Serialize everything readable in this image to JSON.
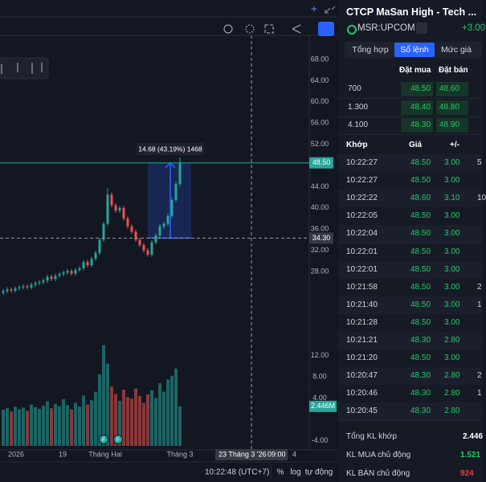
{
  "chart": {
    "price_axis": [
      {
        "value": 68,
        "label": "68.00"
      },
      {
        "value": 64,
        "label": "64.00"
      },
      {
        "value": 60,
        "label": "60.00"
      },
      {
        "value": 56,
        "label": "56.00"
      },
      {
        "value": 52,
        "label": "52.00"
      },
      {
        "value": 44,
        "label": "44.00"
      },
      {
        "value": 40,
        "label": "40.00"
      },
      {
        "value": 36,
        "label": "36.00"
      },
      {
        "value": 32,
        "label": "32.00"
      },
      {
        "value": 28,
        "label": "28.00"
      }
    ],
    "volume_axis": [
      {
        "value": 12,
        "label": "12.00"
      },
      {
        "value": 8,
        "label": "8.00"
      },
      {
        "value": 4,
        "label": "4.00"
      },
      {
        "value": -4,
        "label": "-4.00"
      }
    ],
    "candles": [
      [
        24.0,
        24.7,
        23.6,
        24.3
      ],
      [
        24.3,
        25.0,
        23.9,
        24.6
      ],
      [
        24.6,
        25.0,
        24.0,
        24.4
      ],
      [
        24.4,
        25.2,
        24.0,
        24.8
      ],
      [
        24.8,
        25.4,
        24.4,
        25.0
      ],
      [
        25.0,
        25.6,
        24.6,
        25.2
      ],
      [
        25.2,
        25.6,
        24.6,
        25.0
      ],
      [
        25.0,
        25.9,
        24.6,
        25.5
      ],
      [
        25.5,
        26.2,
        25.1,
        25.8
      ],
      [
        25.8,
        26.4,
        25.4,
        26.0
      ],
      [
        26.0,
        26.7,
        25.6,
        26.3
      ],
      [
        26.3,
        27.4,
        25.9,
        27.0
      ],
      [
        27.0,
        27.4,
        26.2,
        26.6
      ],
      [
        26.6,
        27.6,
        26.2,
        27.2
      ],
      [
        27.2,
        27.9,
        26.8,
        27.5
      ],
      [
        27.5,
        28.2,
        27.1,
        27.8
      ],
      [
        27.8,
        28.5,
        27.4,
        28.1
      ],
      [
        28.1,
        28.5,
        27.2,
        27.6
      ],
      [
        27.6,
        28.7,
        27.2,
        28.3
      ],
      [
        28.3,
        29.0,
        27.9,
        28.6
      ],
      [
        28.6,
        30.2,
        28.2,
        29.8
      ],
      [
        29.8,
        30.2,
        28.8,
        29.2
      ],
      [
        29.2,
        30.8,
        28.8,
        30.4
      ],
      [
        30.4,
        31.9,
        30.0,
        31.5
      ],
      [
        31.5,
        34.4,
        31.1,
        34.0
      ],
      [
        34.0,
        37.4,
        33.6,
        37.0
      ],
      [
        37.0,
        43.7,
        36.6,
        42.5
      ],
      [
        42.5,
        42.9,
        40.1,
        40.5
      ],
      [
        40.5,
        40.9,
        39.1,
        39.5
      ],
      [
        39.5,
        40.4,
        39.1,
        40.0
      ],
      [
        40.0,
        40.4,
        37.6,
        38.0
      ],
      [
        38.0,
        38.4,
        36.1,
        36.5
      ],
      [
        36.5,
        36.9,
        35.1,
        35.5
      ],
      [
        35.5,
        35.9,
        33.6,
        34.0
      ],
      [
        34.0,
        34.4,
        32.6,
        33.0
      ],
      [
        33.0,
        33.4,
        31.6,
        32.0
      ],
      [
        32.0,
        32.4,
        30.8,
        31.2
      ],
      [
        31.2,
        33.9,
        30.8,
        33.5
      ],
      [
        33.5,
        35.2,
        33.1,
        34.8
      ],
      [
        34.8,
        36.9,
        34.4,
        36.5
      ],
      [
        36.5,
        37.4,
        36.1,
        37.0
      ],
      [
        37.0,
        38.9,
        36.6,
        38.5
      ],
      [
        38.5,
        41.9,
        38.1,
        41.5
      ],
      [
        41.5,
        44.9,
        41.1,
        44.5
      ],
      [
        44.5,
        49.5,
        44.1,
        48.5
      ]
    ],
    "volumes": [
      1.8,
      2.1,
      1.5,
      2.4,
      1.9,
      2.2,
      1.6,
      2.8,
      2.3,
      2.0,
      2.6,
      3.4,
      2.1,
      2.9,
      2.5,
      3.8,
      2.7,
      1.9,
      3.1,
      2.4,
      4.5,
      2.8,
      3.6,
      5.2,
      8.5,
      14.0,
      10.5,
      6.2,
      4.8,
      3.5,
      5.6,
      4.2,
      3.9,
      5.8,
      4.4,
      3.1,
      4.7,
      5.5,
      4.0,
      6.8,
      5.2,
      7.5,
      8.2,
      9.6,
      2.446
    ],
    "last_price": {
      "value": 48.5,
      "label": "48.50"
    },
    "crosshair_price": {
      "value": 34.3,
      "label": "34.30"
    },
    "last_volume": {
      "value": 2.446,
      "label": "2.446M"
    },
    "measure": "14.68 (43.19%) 1468",
    "x_labels": [
      "2026",
      "19",
      "Tháng Hai",
      "Tháng 3"
    ],
    "crosshair_time": "23 Tháng 3 '26",
    "crosshair_hour": "09:00",
    "x_edge": "4",
    "markers": [
      "F",
      "F"
    ]
  },
  "status_bar": {
    "time": "10:22:48 (UTC+7)",
    "items": [
      "%",
      "log",
      "tự động"
    ]
  },
  "panel": {
    "title": "CTCP MaSan High - Tech ...",
    "symbol": "MSR:UPCOM",
    "change": "+3.00",
    "tabs": [
      "Tổng hợp",
      "Sổ lệnh",
      "Mức giá"
    ],
    "book_header": [
      "Đặt mua",
      "Đặt bán"
    ],
    "book": [
      [
        "700",
        "48.50",
        "48.60"
      ],
      [
        "1.300",
        "48.40",
        "48.80"
      ],
      [
        "4.100",
        "48.30",
        "48.90"
      ]
    ],
    "trades_header": [
      "Khớp",
      "Giá",
      "+/-"
    ],
    "trades": [
      [
        "10:22:27",
        "48.50",
        "3.00",
        "5"
      ],
      [
        "10:22:27",
        "48.50",
        "3.00"
      ],
      [
        "10:22:22",
        "48.60",
        "3.10",
        "10"
      ],
      [
        "10:22:05",
        "48.50",
        "3.00"
      ],
      [
        "10:22:04",
        "48.50",
        "3.00"
      ],
      [
        "10:22:01",
        "48.50",
        "3.00"
      ],
      [
        "10:22:01",
        "48.50",
        "3.00"
      ],
      [
        "10:21:58",
        "48.50",
        "3.00",
        "2"
      ],
      [
        "10:21:40",
        "48.50",
        "3.00",
        "1"
      ],
      [
        "10:21:28",
        "48.50",
        "3.00"
      ],
      [
        "10:21:21",
        "48.30",
        "2.80"
      ],
      [
        "10:21:20",
        "48.50",
        "3.00"
      ],
      [
        "10:20:47",
        "48.30",
        "2.80",
        "2"
      ],
      [
        "10:20:46",
        "48.30",
        "2.80",
        "1"
      ],
      [
        "10:20:45",
        "48.30",
        "2.80"
      ]
    ],
    "summary": [
      [
        "Tổng KL khớp",
        "2.446"
      ],
      [
        "KL MUA chủ động",
        "1.521"
      ],
      [
        "KL BÁN chủ động",
        "924"
      ]
    ]
  }
}
